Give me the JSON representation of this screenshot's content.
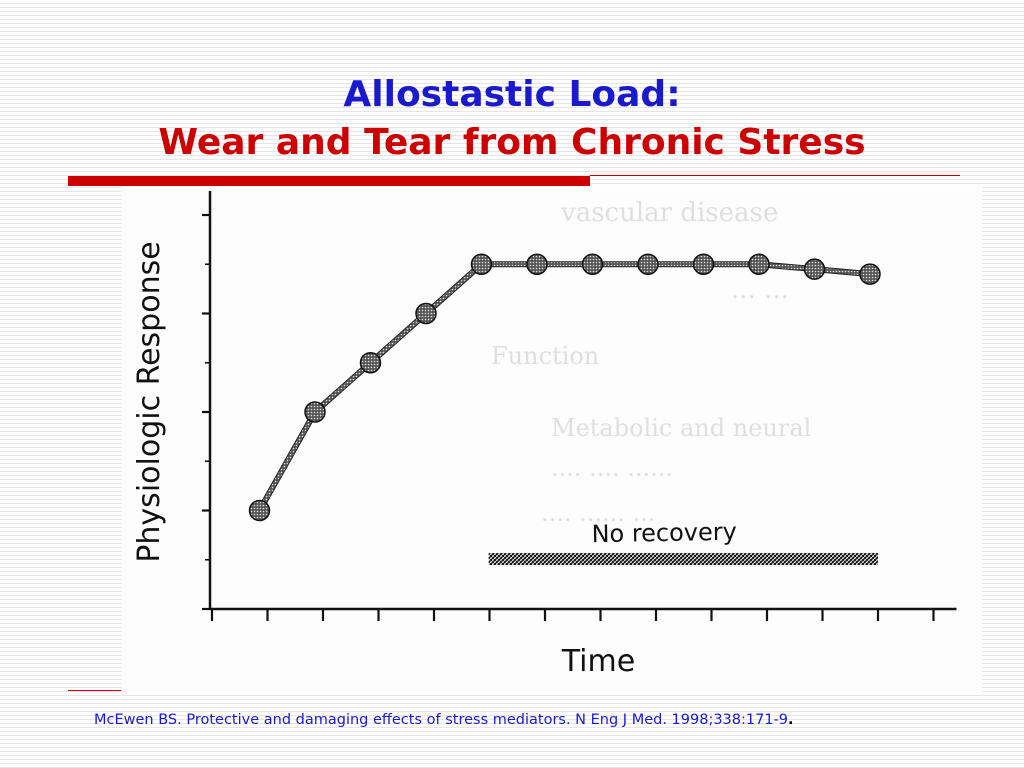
{
  "slide": {
    "title_line1": "Allostastic Load:",
    "title_line2": "Wear and Tear from Chronic Stress",
    "citation": "McEwen BS. Protective and damaging effects of stress mediators. N Eng J Med. 1998;338:171-9",
    "citation_end": "."
  },
  "colors": {
    "title_blue": "#1a1acc",
    "title_red": "#cc0000",
    "accent_bar": "#cc0000"
  },
  "chart_data": {
    "type": "line",
    "title": "",
    "xlabel": "Time",
    "ylabel": "Physiologic Response",
    "x": [
      1,
      2,
      3,
      4,
      5,
      6,
      7,
      8,
      9,
      10,
      11,
      12
    ],
    "series": [
      {
        "values": [
          1.0,
          2.0,
          2.5,
          3.0,
          3.5,
          3.5,
          3.5,
          3.5,
          3.5,
          3.5,
          3.45,
          3.4
        ]
      }
    ],
    "xlim": [
      0,
      13
    ],
    "ylim": [
      0,
      4
    ],
    "y_ticks": [
      0,
      1,
      2,
      3,
      4
    ],
    "x_ticks": [
      1,
      2,
      3,
      4,
      5,
      6,
      7,
      8,
      9,
      10,
      11,
      12,
      13
    ],
    "annotation": {
      "text": "No recovery",
      "x_start": 5.2,
      "x_end": 12.0
    },
    "grid": false
  }
}
